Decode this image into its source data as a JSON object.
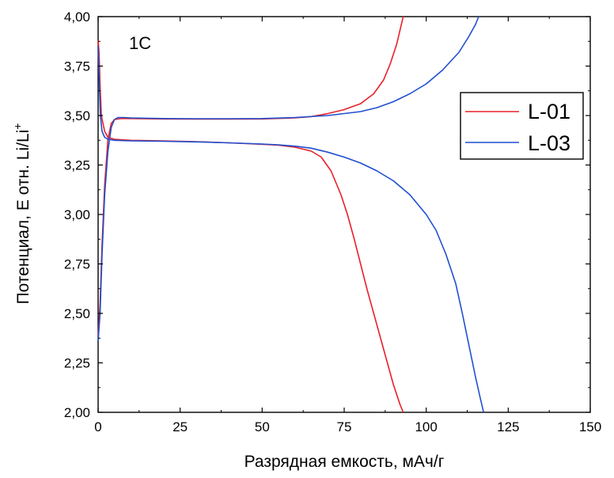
{
  "chart_data": {
    "type": "line",
    "title": "",
    "annotation": "1C",
    "xlabel": "Разрядная емкость, мАч/г",
    "ylabel_main": "Потенциал, E отн. Li/Li",
    "ylabel_sup": "+",
    "xlim": [
      0,
      150
    ],
    "ylim": [
      2.0,
      4.0
    ],
    "x_ticks": [
      0,
      25,
      50,
      75,
      100,
      125,
      150
    ],
    "x_tick_labels": [
      "0",
      "25",
      "50",
      "75",
      "100",
      "125",
      "150"
    ],
    "y_ticks": [
      2.0,
      2.25,
      2.5,
      2.75,
      3.0,
      3.25,
      3.5,
      3.75,
      4.0
    ],
    "y_tick_labels": [
      "2,00",
      "2,25",
      "2,50",
      "2,75",
      "3,00",
      "3,25",
      "3,50",
      "3,75",
      "4,00"
    ],
    "grid": false,
    "legend_position": "top-right",
    "series": [
      {
        "name": "L-01",
        "color": "#e8202a",
        "branches": [
          {
            "label": "charge",
            "points": [
              [
                0,
                2.38
              ],
              [
                0.6,
                2.55
              ],
              [
                1.2,
                2.85
              ],
              [
                2,
                3.15
              ],
              [
                3,
                3.38
              ],
              [
                4,
                3.46
              ],
              [
                5,
                3.48
              ],
              [
                7,
                3.485
              ],
              [
                10,
                3.485
              ],
              [
                20,
                3.483
              ],
              [
                30,
                3.482
              ],
              [
                40,
                3.482
              ],
              [
                50,
                3.483
              ],
              [
                60,
                3.488
              ],
              [
                65,
                3.495
              ],
              [
                70,
                3.51
              ],
              [
                75,
                3.53
              ],
              [
                80,
                3.56
              ],
              [
                84,
                3.61
              ],
              [
                87,
                3.68
              ],
              [
                89,
                3.76
              ],
              [
                91,
                3.86
              ],
              [
                93,
                4.0
              ]
            ]
          },
          {
            "label": "discharge",
            "points": [
              [
                0,
                3.88
              ],
              [
                0.3,
                3.82
              ],
              [
                0.6,
                3.65
              ],
              [
                1,
                3.5
              ],
              [
                2,
                3.42
              ],
              [
                3,
                3.39
              ],
              [
                5,
                3.38
              ],
              [
                10,
                3.375
              ],
              [
                20,
                3.372
              ],
              [
                30,
                3.368
              ],
              [
                40,
                3.362
              ],
              [
                50,
                3.355
              ],
              [
                55,
                3.35
              ],
              [
                60,
                3.34
              ],
              [
                65,
                3.32
              ],
              [
                68,
                3.29
              ],
              [
                71,
                3.22
              ],
              [
                74,
                3.1
              ],
              [
                76,
                3.0
              ],
              [
                78,
                2.88
              ],
              [
                80,
                2.75
              ],
              [
                82,
                2.62
              ],
              [
                84,
                2.5
              ],
              [
                86,
                2.38
              ],
              [
                88,
                2.26
              ],
              [
                90,
                2.14
              ],
              [
                92,
                2.04
              ],
              [
                93,
                2.0
              ]
            ]
          }
        ]
      },
      {
        "name": "L-03",
        "color": "#1f4fcf",
        "branches": [
          {
            "label": "charge",
            "points": [
              [
                0,
                2.36
              ],
              [
                0.6,
                2.5
              ],
              [
                1.2,
                2.8
              ],
              [
                2,
                3.1
              ],
              [
                3,
                3.32
              ],
              [
                4,
                3.44
              ],
              [
                5,
                3.48
              ],
              [
                6,
                3.49
              ],
              [
                8,
                3.49
              ],
              [
                10,
                3.488
              ],
              [
                20,
                3.485
              ],
              [
                30,
                3.484
              ],
              [
                40,
                3.484
              ],
              [
                50,
                3.485
              ],
              [
                60,
                3.49
              ],
              [
                70,
                3.5
              ],
              [
                80,
                3.52
              ],
              [
                85,
                3.54
              ],
              [
                90,
                3.57
              ],
              [
                95,
                3.61
              ],
              [
                100,
                3.66
              ],
              [
                105,
                3.73
              ],
              [
                110,
                3.82
              ],
              [
                113,
                3.9
              ],
              [
                115,
                3.96
              ],
              [
                116,
                4.0
              ]
            ]
          },
          {
            "label": "discharge",
            "points": [
              [
                0,
                3.85
              ],
              [
                0.3,
                3.7
              ],
              [
                0.7,
                3.5
              ],
              [
                1.2,
                3.42
              ],
              [
                2,
                3.39
              ],
              [
                3,
                3.38
              ],
              [
                5,
                3.375
              ],
              [
                10,
                3.372
              ],
              [
                20,
                3.37
              ],
              [
                30,
                3.367
              ],
              [
                40,
                3.362
              ],
              [
                50,
                3.356
              ],
              [
                55,
                3.352
              ],
              [
                60,
                3.345
              ],
              [
                65,
                3.335
              ],
              [
                70,
                3.315
              ],
              [
                75,
                3.29
              ],
              [
                80,
                3.26
              ],
              [
                85,
                3.22
              ],
              [
                90,
                3.17
              ],
              [
                95,
                3.1
              ],
              [
                100,
                3.0
              ],
              [
                103,
                2.92
              ],
              [
                106,
                2.8
              ],
              [
                109,
                2.65
              ],
              [
                111,
                2.5
              ],
              [
                113,
                2.34
              ],
              [
                115,
                2.18
              ],
              [
                116.5,
                2.07
              ],
              [
                117.5,
                2.0
              ]
            ]
          }
        ]
      }
    ]
  }
}
